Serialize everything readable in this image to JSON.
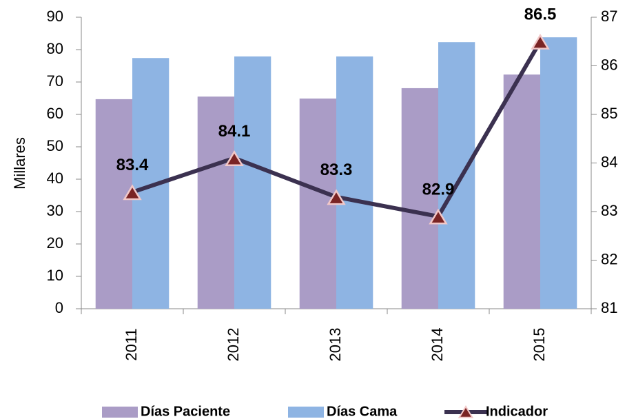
{
  "chart_data": {
    "type": "bar_line",
    "y_label": "Millares",
    "categories": [
      "2011",
      "2012",
      "2013",
      "2014",
      "2015"
    ],
    "series": [
      {
        "name": "Días Paciente",
        "color": "#aa9cc6",
        "values": [
          64.7,
          65.5,
          64.9,
          68.1,
          72.3
        ]
      },
      {
        "name": "Días Cama",
        "color": "#8eb4e3",
        "values": [
          77.4,
          77.9,
          77.9,
          82.3,
          83.8
        ]
      },
      {
        "name": "Indicador",
        "color": "#3b3150",
        "marker_color": "#7a2424",
        "axis": "y2",
        "values": [
          83.4,
          84.1,
          83.3,
          82.9,
          86.5
        ]
      }
    ],
    "ylim": [
      0,
      90
    ],
    "yticks": [
      0,
      10,
      20,
      30,
      40,
      50,
      60,
      70,
      80,
      90
    ],
    "y2lim": [
      81,
      87
    ],
    "y2ticks": [
      81,
      82,
      83,
      84,
      85,
      86,
      87
    ],
    "legend": "bottom"
  }
}
